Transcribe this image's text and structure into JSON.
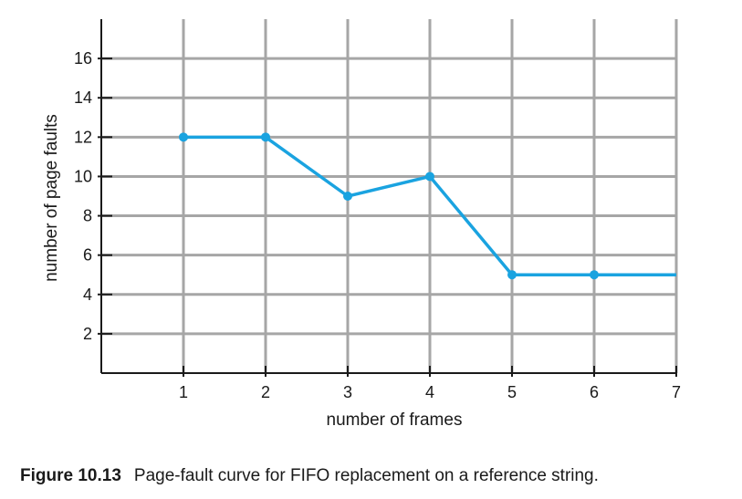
{
  "chart_data": {
    "type": "line",
    "xlabel": "number of frames",
    "ylabel": "number of page faults",
    "x": [
      1,
      2,
      3,
      4,
      5,
      6,
      7
    ],
    "series": [
      {
        "values": [
          12,
          12,
          9,
          10,
          5,
          5,
          5
        ]
      }
    ],
    "xlim": [
      0,
      7
    ],
    "ylim": [
      0,
      18
    ],
    "xticks": [
      1,
      2,
      3,
      4,
      5,
      6,
      7
    ],
    "yticks": [
      2,
      4,
      6,
      8,
      10,
      12,
      14,
      16
    ],
    "grid": true,
    "line_color": "#1aa3e0",
    "grid_color": "#a6a6a6",
    "axis_color": "#1a1a1a"
  },
  "caption": {
    "label": "Figure 10.13",
    "text": "Page-fault curve for FIFO replacement on a reference string."
  }
}
